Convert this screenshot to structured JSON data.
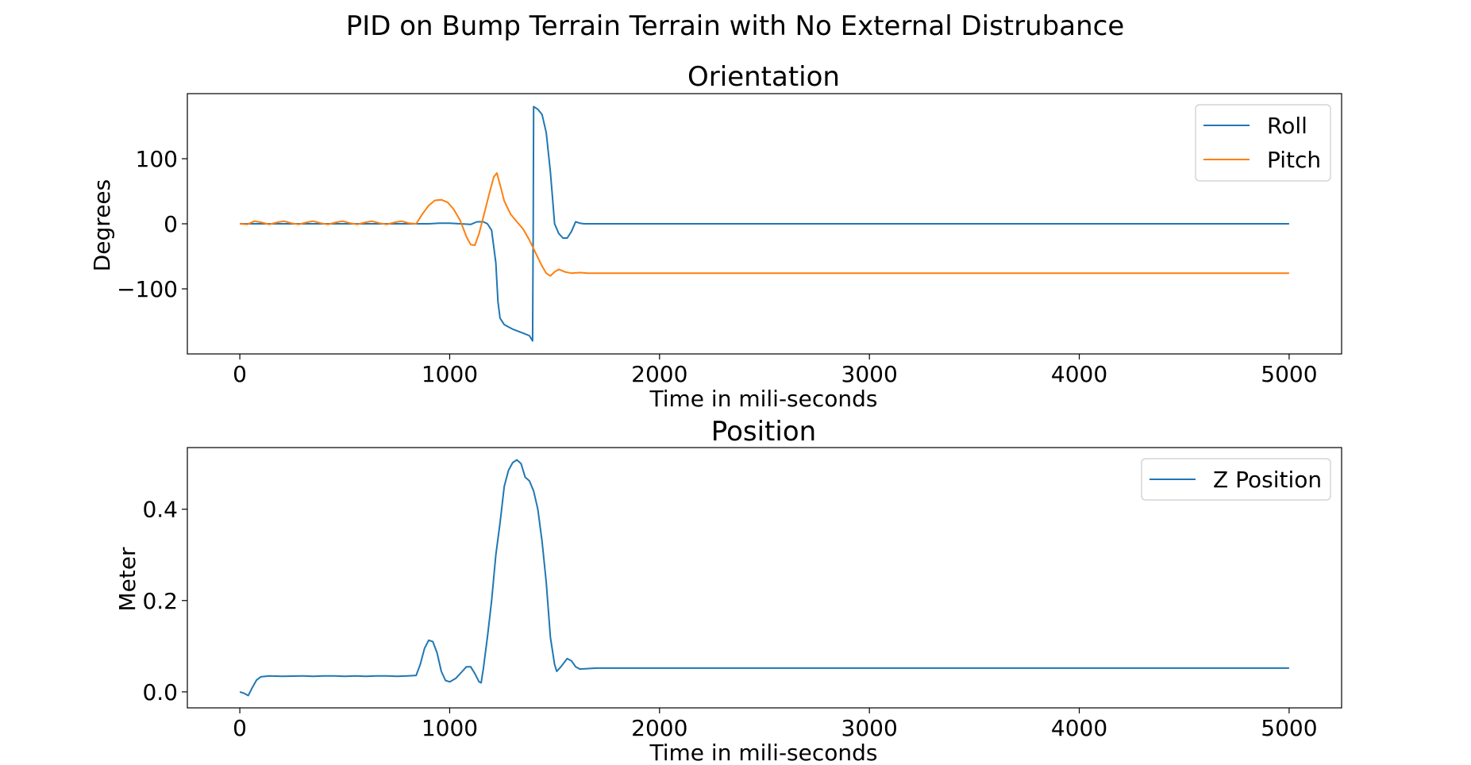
{
  "figure": {
    "title": "PID on Bump Terrain Terrain with No External Distrubance"
  },
  "colors": {
    "roll": "#1f77b4",
    "pitch": "#ff7f0e",
    "z": "#1f77b4",
    "axes": "#000000",
    "legend_border": "#cccccc"
  },
  "chart_data": [
    {
      "type": "line",
      "title": "Orientation",
      "xlabel": "Time in mili-seconds",
      "ylabel": "Degrees",
      "xlim": [
        -250,
        5250
      ],
      "ylim": [
        -200,
        200
      ],
      "xticks": [
        0,
        1000,
        2000,
        3000,
        4000,
        5000
      ],
      "xtick_labels": [
        "0",
        "1000",
        "2000",
        "3000",
        "4000",
        "5000"
      ],
      "yticks": [
        100,
        0,
        -100
      ],
      "ytick_labels": [
        "100",
        "0",
        "−100"
      ],
      "legend": "top-right",
      "grid": false,
      "series": [
        {
          "name": "Roll",
          "color_key": "roll",
          "points": [
            [
              0,
              0
            ],
            [
              100,
              0
            ],
            [
              200,
              0
            ],
            [
              300,
              0
            ],
            [
              400,
              0
            ],
            [
              500,
              0
            ],
            [
              600,
              0
            ],
            [
              700,
              0
            ],
            [
              800,
              0
            ],
            [
              900,
              0
            ],
            [
              950,
              1
            ],
            [
              1000,
              1
            ],
            [
              1050,
              0
            ],
            [
              1100,
              -1
            ],
            [
              1130,
              3
            ],
            [
              1160,
              3
            ],
            [
              1180,
              0
            ],
            [
              1200,
              -10
            ],
            [
              1220,
              -60
            ],
            [
              1230,
              -120
            ],
            [
              1240,
              -145
            ],
            [
              1260,
              -155
            ],
            [
              1300,
              -162
            ],
            [
              1350,
              -168
            ],
            [
              1380,
              -172
            ],
            [
              1395,
              -180
            ],
            [
              1398,
              0
            ],
            [
              1400,
              180
            ],
            [
              1420,
              176
            ],
            [
              1440,
              168
            ],
            [
              1460,
              140
            ],
            [
              1480,
              80
            ],
            [
              1490,
              40
            ],
            [
              1500,
              0
            ],
            [
              1520,
              -15
            ],
            [
              1540,
              -22
            ],
            [
              1560,
              -22
            ],
            [
              1580,
              -12
            ],
            [
              1600,
              3
            ],
            [
              1620,
              1
            ],
            [
              1640,
              0
            ],
            [
              1700,
              0
            ],
            [
              2000,
              0
            ],
            [
              3000,
              0
            ],
            [
              4000,
              0
            ],
            [
              5000,
              0
            ]
          ]
        },
        {
          "name": "Pitch",
          "color_key": "pitch",
          "points": [
            [
              0,
              0
            ],
            [
              35,
              -1
            ],
            [
              70,
              4
            ],
            [
              105,
              2
            ],
            [
              140,
              -1
            ],
            [
              175,
              2
            ],
            [
              210,
              4
            ],
            [
              245,
              1
            ],
            [
              280,
              -1
            ],
            [
              315,
              2
            ],
            [
              350,
              4
            ],
            [
              385,
              1
            ],
            [
              420,
              -1
            ],
            [
              455,
              2
            ],
            [
              490,
              4
            ],
            [
              525,
              1
            ],
            [
              560,
              -1
            ],
            [
              595,
              2
            ],
            [
              630,
              4
            ],
            [
              665,
              1
            ],
            [
              700,
              -1
            ],
            [
              735,
              2
            ],
            [
              770,
              4
            ],
            [
              805,
              1
            ],
            [
              840,
              0
            ],
            [
              870,
              15
            ],
            [
              900,
              28
            ],
            [
              930,
              36
            ],
            [
              960,
              37
            ],
            [
              990,
              33
            ],
            [
              1020,
              22
            ],
            [
              1050,
              5
            ],
            [
              1080,
              -20
            ],
            [
              1100,
              -32
            ],
            [
              1120,
              -33
            ],
            [
              1140,
              -15
            ],
            [
              1160,
              10
            ],
            [
              1190,
              48
            ],
            [
              1210,
              72
            ],
            [
              1225,
              78
            ],
            [
              1240,
              60
            ],
            [
              1260,
              35
            ],
            [
              1290,
              15
            ],
            [
              1320,
              3
            ],
            [
              1350,
              -8
            ],
            [
              1380,
              -25
            ],
            [
              1410,
              -45
            ],
            [
              1440,
              -65
            ],
            [
              1460,
              -76
            ],
            [
              1480,
              -80
            ],
            [
              1500,
              -74
            ],
            [
              1520,
              -70
            ],
            [
              1550,
              -74
            ],
            [
              1580,
              -76
            ],
            [
              1620,
              -75
            ],
            [
              1660,
              -76
            ],
            [
              1700,
              -76
            ],
            [
              2000,
              -76
            ],
            [
              3000,
              -76
            ],
            [
              4000,
              -76
            ],
            [
              5000,
              -76
            ]
          ]
        }
      ]
    },
    {
      "type": "line",
      "title": "Position",
      "xlabel": "Time in mili-seconds",
      "ylabel": "Meter",
      "xlim": [
        -250,
        5250
      ],
      "ylim": [
        -0.035,
        0.535
      ],
      "xticks": [
        0,
        1000,
        2000,
        3000,
        4000,
        5000
      ],
      "xtick_labels": [
        "0",
        "1000",
        "2000",
        "3000",
        "4000",
        "5000"
      ],
      "yticks": [
        0.4,
        0.2,
        0.0
      ],
      "ytick_labels": [
        "0.4",
        "0.2",
        "0.0"
      ],
      "legend": "top-right",
      "grid": false,
      "series": [
        {
          "name": "Z Position",
          "color_key": "z",
          "points": [
            [
              0,
              0
            ],
            [
              20,
              -0.003
            ],
            [
              40,
              -0.008
            ],
            [
              60,
              0.01
            ],
            [
              80,
              0.026
            ],
            [
              100,
              0.033
            ],
            [
              140,
              0.035
            ],
            [
              200,
              0.034
            ],
            [
              300,
              0.035
            ],
            [
              350,
              0.034
            ],
            [
              400,
              0.035
            ],
            [
              450,
              0.035
            ],
            [
              500,
              0.034
            ],
            [
              550,
              0.035
            ],
            [
              600,
              0.034
            ],
            [
              650,
              0.035
            ],
            [
              700,
              0.035
            ],
            [
              750,
              0.034
            ],
            [
              800,
              0.035
            ],
            [
              840,
              0.036
            ],
            [
              860,
              0.06
            ],
            [
              880,
              0.095
            ],
            [
              900,
              0.113
            ],
            [
              920,
              0.11
            ],
            [
              940,
              0.085
            ],
            [
              960,
              0.045
            ],
            [
              980,
              0.025
            ],
            [
              1000,
              0.022
            ],
            [
              1030,
              0.03
            ],
            [
              1060,
              0.045
            ],
            [
              1080,
              0.055
            ],
            [
              1100,
              0.055
            ],
            [
              1120,
              0.04
            ],
            [
              1140,
              0.022
            ],
            [
              1150,
              0.02
            ],
            [
              1160,
              0.05
            ],
            [
              1180,
              0.12
            ],
            [
              1200,
              0.2
            ],
            [
              1220,
              0.3
            ],
            [
              1240,
              0.37
            ],
            [
              1260,
              0.45
            ],
            [
              1280,
              0.485
            ],
            [
              1300,
              0.502
            ],
            [
              1320,
              0.508
            ],
            [
              1340,
              0.5
            ],
            [
              1360,
              0.47
            ],
            [
              1380,
              0.462
            ],
            [
              1400,
              0.44
            ],
            [
              1420,
              0.4
            ],
            [
              1440,
              0.33
            ],
            [
              1460,
              0.24
            ],
            [
              1480,
              0.12
            ],
            [
              1500,
              0.06
            ],
            [
              1510,
              0.045
            ],
            [
              1530,
              0.055
            ],
            [
              1560,
              0.073
            ],
            [
              1580,
              0.068
            ],
            [
              1600,
              0.055
            ],
            [
              1620,
              0.05
            ],
            [
              1700,
              0.052
            ],
            [
              2000,
              0.052
            ],
            [
              3000,
              0.052
            ],
            [
              4000,
              0.052
            ],
            [
              5000,
              0.052
            ]
          ]
        }
      ]
    }
  ]
}
